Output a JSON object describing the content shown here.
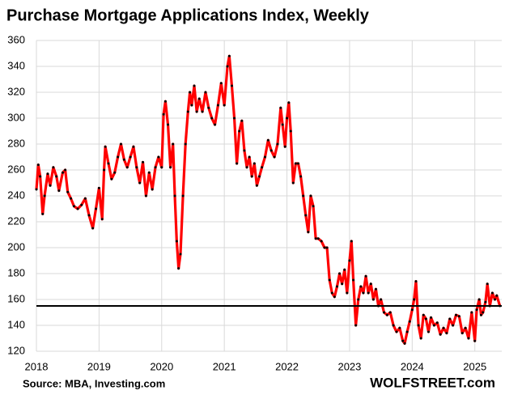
{
  "chart_data": {
    "type": "line",
    "title": "Purchase Mortgage Applications Index, Weekly",
    "source": "Source: MBA, Investing.com",
    "watermark": "WOLFSTREET.com",
    "xlim": [
      2018,
      2025.43
    ],
    "xticks": [
      2018,
      2019,
      2020,
      2021,
      2022,
      2023,
      2024,
      2025
    ],
    "ylim": [
      120,
      360
    ],
    "yticks": [
      120,
      140,
      160,
      180,
      200,
      220,
      240,
      260,
      280,
      300,
      320,
      340,
      360
    ],
    "grid": true,
    "reference_line": 155,
    "reference_color": "#000000",
    "marker_color": "#000000",
    "series": [
      {
        "name": "Purchase Mortgage Applications Index",
        "color": "#ff0000",
        "x": [
          2018.0,
          2018.03,
          2018.06,
          2018.1,
          2018.13,
          2018.18,
          2018.22,
          2018.27,
          2018.32,
          2018.36,
          2018.42,
          2018.46,
          2018.5,
          2018.55,
          2018.6,
          2018.66,
          2018.72,
          2018.78,
          2018.84,
          2018.9,
          2018.95,
          2019.0,
          2019.05,
          2019.08,
          2019.1,
          2019.15,
          2019.2,
          2019.25,
          2019.3,
          2019.35,
          2019.4,
          2019.45,
          2019.5,
          2019.55,
          2019.6,
          2019.65,
          2019.7,
          2019.75,
          2019.8,
          2019.85,
          2019.9,
          2019.95,
          2020.0,
          2020.03,
          2020.06,
          2020.1,
          2020.14,
          2020.18,
          2020.21,
          2020.24,
          2020.27,
          2020.3,
          2020.34,
          2020.38,
          2020.42,
          2020.45,
          2020.48,
          2020.52,
          2020.56,
          2020.6,
          2020.65,
          2020.7,
          2020.75,
          2020.8,
          2020.85,
          2020.9,
          2020.95,
          2021.0,
          2021.05,
          2021.08,
          2021.12,
          2021.16,
          2021.2,
          2021.24,
          2021.28,
          2021.32,
          2021.36,
          2021.4,
          2021.44,
          2021.48,
          2021.52,
          2021.56,
          2021.6,
          2021.65,
          2021.7,
          2021.75,
          2021.8,
          2021.85,
          2021.9,
          2021.93,
          2021.97,
          2022.0,
          2022.03,
          2022.06,
          2022.1,
          2022.14,
          2022.18,
          2022.22,
          2022.26,
          2022.3,
          2022.34,
          2022.38,
          2022.42,
          2022.46,
          2022.5,
          2022.55,
          2022.6,
          2022.64,
          2022.68,
          2022.72,
          2022.76,
          2022.8,
          2022.84,
          2022.88,
          2022.92,
          2022.96,
          2023.0,
          2023.03,
          2023.06,
          2023.1,
          2023.14,
          2023.18,
          2023.22,
          2023.26,
          2023.3,
          2023.34,
          2023.38,
          2023.42,
          2023.46,
          2023.5,
          2023.55,
          2023.6,
          2023.65,
          2023.7,
          2023.75,
          2023.8,
          2023.85,
          2023.88,
          2023.92,
          2023.96,
          2024.0,
          2024.03,
          2024.06,
          2024.1,
          2024.14,
          2024.18,
          2024.22,
          2024.26,
          2024.3,
          2024.35,
          2024.4,
          2024.45,
          2024.5,
          2024.55,
          2024.6,
          2024.65,
          2024.7,
          2024.75,
          2024.8,
          2024.85,
          2024.9,
          2024.95,
          2025.0,
          2025.03,
          2025.07,
          2025.1,
          2025.13,
          2025.17,
          2025.2,
          2025.24,
          2025.28,
          2025.32,
          2025.35,
          2025.4
        ],
        "values": [
          245,
          264,
          255,
          226,
          240,
          257,
          248,
          262,
          255,
          244,
          258,
          260,
          243,
          238,
          232,
          230,
          233,
          238,
          225,
          215,
          230,
          246,
          222,
          260,
          278,
          265,
          253,
          258,
          270,
          280,
          268,
          262,
          270,
          278,
          262,
          250,
          266,
          240,
          258,
          245,
          262,
          270,
          262,
          303,
          313,
          295,
          262,
          280,
          240,
          205,
          184,
          195,
          240,
          280,
          305,
          320,
          310,
          325,
          305,
          315,
          305,
          320,
          308,
          300,
          295,
          310,
          327,
          310,
          340,
          348,
          325,
          300,
          265,
          290,
          298,
          275,
          262,
          270,
          255,
          265,
          248,
          255,
          262,
          270,
          283,
          275,
          270,
          280,
          308,
          295,
          278,
          300,
          312,
          290,
          250,
          265,
          265,
          255,
          240,
          225,
          212,
          240,
          232,
          207,
          207,
          205,
          200,
          200,
          175,
          165,
          162,
          170,
          180,
          172,
          183,
          165,
          190,
          205,
          175,
          140,
          160,
          170,
          165,
          178,
          165,
          172,
          160,
          168,
          155,
          160,
          150,
          148,
          150,
          140,
          135,
          138,
          128,
          126,
          135,
          143,
          152,
          160,
          174,
          140,
          130,
          148,
          145,
          135,
          146,
          140,
          142,
          133,
          138,
          134,
          145,
          140,
          148,
          147,
          134,
          138,
          130,
          150,
          128,
          152,
          160,
          148,
          150,
          158,
          172,
          155,
          165,
          160,
          163,
          155
        ]
      }
    ]
  }
}
